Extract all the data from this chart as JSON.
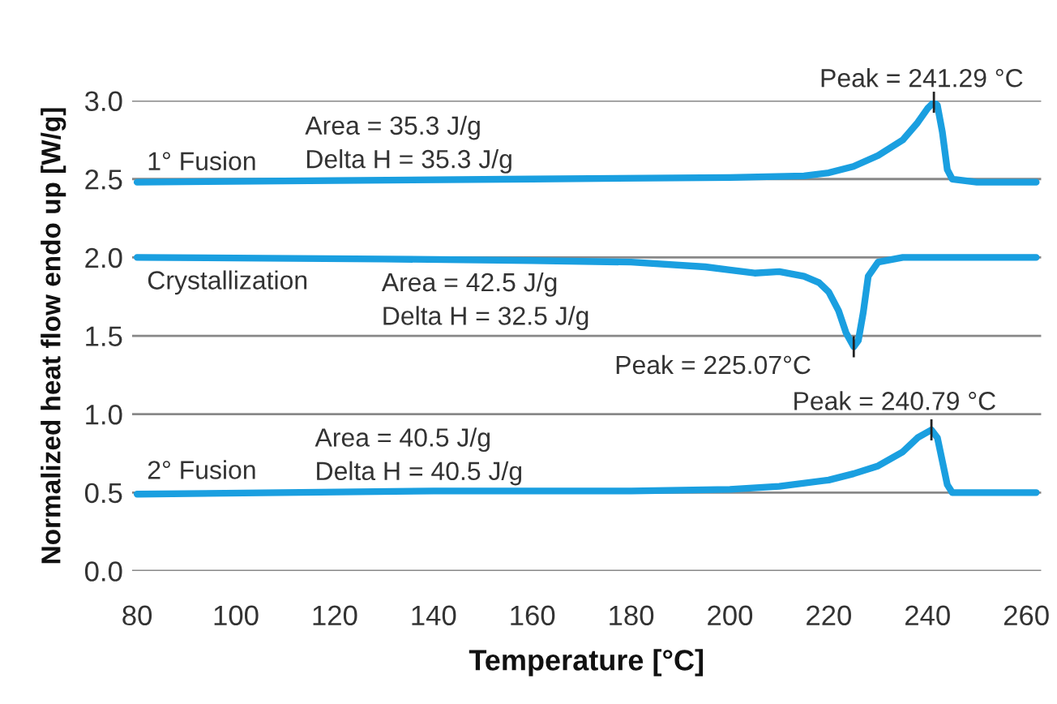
{
  "chart_data": {
    "type": "line",
    "xlabel": "Temperature [°C]",
    "ylabel": "Normalized heat flow endo up [W/g]",
    "xlim": [
      79,
      263
    ],
    "xticks": [
      80,
      100,
      120,
      140,
      160,
      180,
      200,
      220,
      240,
      260
    ],
    "ylim": [
      0,
      3
    ],
    "yticks": [
      {
        "value": 0,
        "label": "0.0"
      },
      {
        "value": 0.5,
        "label": "0.5"
      },
      {
        "value": 1,
        "label": "1.0"
      },
      {
        "value": 1.5,
        "label": "1.5"
      },
      {
        "value": 2,
        "label": "2.0"
      },
      {
        "value": 2.5,
        "label": "2.5"
      },
      {
        "value": 3,
        "label": "3.0"
      }
    ],
    "grid": "y",
    "legend": false,
    "series": [
      {
        "name": "1° Fusion",
        "color": "#1a9fe0",
        "x": [
          80,
          120,
          160,
          200,
          215,
          220,
          225,
          230,
          235,
          238,
          240,
          241.29,
          242,
          243,
          244,
          245,
          250,
          262
        ],
        "values": [
          2.48,
          2.49,
          2.5,
          2.51,
          2.52,
          2.54,
          2.58,
          2.65,
          2.75,
          2.86,
          2.95,
          2.99,
          2.97,
          2.8,
          2.56,
          2.5,
          2.48,
          2.48
        ]
      },
      {
        "name": "Crystallization",
        "color": "#1a9fe0",
        "x": [
          80,
          130,
          160,
          180,
          195,
          200,
          205,
          210,
          215,
          218,
          220,
          222,
          223.5,
          225.07,
          226,
          227,
          228,
          230,
          235,
          245,
          262
        ],
        "values": [
          2.0,
          1.99,
          1.98,
          1.97,
          1.94,
          1.92,
          1.9,
          1.91,
          1.88,
          1.84,
          1.78,
          1.66,
          1.52,
          1.43,
          1.47,
          1.65,
          1.88,
          1.97,
          2.0,
          2.0,
          2.0
        ]
      },
      {
        "name": "2° Fusion",
        "color": "#1a9fe0",
        "x": [
          80,
          140,
          180,
          200,
          210,
          220,
          225,
          230,
          235,
          238,
          240.79,
          242,
          243,
          244,
          245,
          250,
          262
        ],
        "values": [
          0.49,
          0.51,
          0.51,
          0.52,
          0.54,
          0.58,
          0.62,
          0.67,
          0.76,
          0.85,
          0.9,
          0.85,
          0.7,
          0.55,
          0.5,
          0.5,
          0.5
        ]
      }
    ],
    "annotations": [
      {
        "text": "Peak = 241.29 °C",
        "x": 241.29,
        "y": 2.99
      },
      "Area = 35.3 J/g\nDelta H = 35.3 J/g",
      {
        "text": "Peak = 225.07°C",
        "x": 225.07,
        "y": 1.43
      },
      "Area = 42.5 J/g\nDelta H = 32.5 J/g",
      {
        "text": "Peak = 240.79 °C",
        "x": 240.79,
        "y": 0.9
      },
      "Area = 40.5 J/g\nDelta H = 40.5 J/g"
    ]
  }
}
